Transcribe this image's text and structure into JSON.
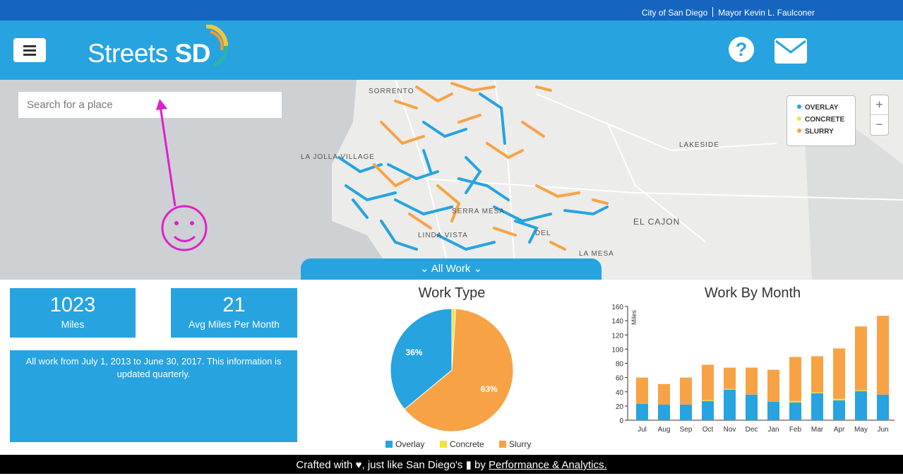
{
  "topbar": {
    "city_link": "City of San Diego",
    "mayor_link": "Mayor Kevin L. Faulconer"
  },
  "header": {
    "logo_light": "Streets ",
    "logo_bold": "SD"
  },
  "search": {
    "placeholder": "Search for a place"
  },
  "legend": [
    {
      "label": "OVERLAY",
      "color": "#27a3e0"
    },
    {
      "label": "CONCRETE",
      "color": "#f2e23a"
    },
    {
      "label": "SLURRY",
      "color": "#f7a345"
    }
  ],
  "zoom": {
    "in": "+",
    "out": "−"
  },
  "map_labels": [
    "SORRENTO",
    "LA JOLLA VILLAGE",
    "SERRA MESA",
    "LINDA VISTA",
    "DEL",
    "LA MESA",
    "LAKESIDE",
    "EL CAJON"
  ],
  "filter_tab": {
    "label": "All Work"
  },
  "stats": {
    "miles_value": "1023",
    "miles_label": "Miles",
    "avg_value": "21",
    "avg_label": "Avg Miles Per Month"
  },
  "info": "All work from July 1, 2013 to June 30, 2017. This information is updated quarterly.",
  "chart_data": [
    {
      "type": "pie",
      "title": "Work Type",
      "categories": [
        "Overlay",
        "Concrete",
        "Slurry"
      ],
      "values": [
        36,
        1,
        63
      ],
      "value_labels": [
        "36%",
        "",
        "63%"
      ],
      "colors": [
        "#27a3e0",
        "#f2e23a",
        "#f7a345"
      ],
      "legend_position": "bottom"
    },
    {
      "type": "bar",
      "stacked": true,
      "title": "Work By Month",
      "ylabel": "Miles",
      "ylim": [
        0,
        160
      ],
      "yticks": [
        0,
        20,
        40,
        60,
        80,
        100,
        120,
        140,
        160
      ],
      "categories": [
        "Jul",
        "Aug",
        "Sep",
        "Oct",
        "Nov",
        "Dec",
        "Jan",
        "Feb",
        "Mar",
        "Apr",
        "May",
        "Jun"
      ],
      "series": [
        {
          "name": "Overlay",
          "color": "#27a3e0",
          "values": [
            23,
            22,
            22,
            27,
            43,
            36,
            26,
            25,
            38,
            28,
            41,
            36
          ]
        },
        {
          "name": "Concrete",
          "color": "#f2e23a",
          "values": [
            0,
            0,
            0,
            1,
            1,
            0,
            0,
            2,
            1,
            2,
            1,
            0
          ]
        },
        {
          "name": "Slurry",
          "color": "#f7a345",
          "values": [
            37,
            29,
            38,
            50,
            30,
            38,
            45,
            62,
            51,
            71,
            90,
            111
          ]
        }
      ],
      "grid": false
    }
  ],
  "footer": {
    "prefix": "Crafted with",
    "middle": ", just like San Diego's",
    "by": "by",
    "link": "Performance & Analytics."
  }
}
